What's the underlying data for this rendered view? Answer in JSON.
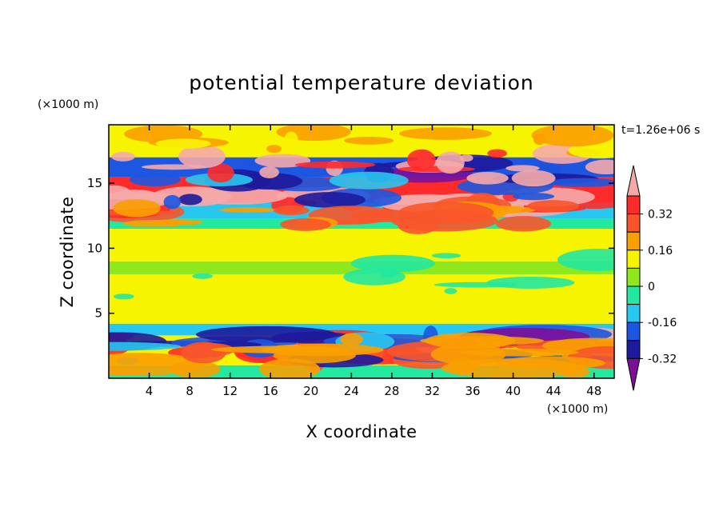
{
  "chart_data": {
    "type": "contour",
    "title": "potential temperature deviation",
    "xlabel": "X coordinate",
    "ylabel": "Z coordinate",
    "x_unit_label": "(×1000 m)",
    "y_unit_label": "(×1000 m)",
    "time_label": "t=1.26e+06 s",
    "xlim": [
      0,
      50
    ],
    "ylim": [
      0,
      19.5
    ],
    "x_ticks": [
      4,
      8,
      12,
      16,
      20,
      24,
      28,
      32,
      36,
      40,
      44,
      48
    ],
    "y_ticks": [
      5,
      10,
      15
    ],
    "colorbar": {
      "levels": [
        -0.4,
        -0.32,
        -0.24,
        -0.16,
        -0.08,
        0,
        0.08,
        0.16,
        0.24,
        0.32,
        0.4
      ],
      "labeled": [
        "0.32",
        "0.16",
        "0",
        "-0.16",
        "-0.32"
      ],
      "colors": [
        "#7b0f9a",
        "#1d1a9c",
        "#1d56e0",
        "#28c7f0",
        "#22e8a0",
        "#8fe81c",
        "#f7f400",
        "#f9a000",
        "#f8552a",
        "#ff2a2a",
        "#f5aaaa"
      ]
    },
    "layers": [
      {
        "z": [
          0,
          1.0
        ],
        "value": -0.1
      },
      {
        "z": [
          1.0,
          3.3
        ],
        "value": 0.05
      },
      {
        "z": [
          3.3,
          4.2
        ],
        "value": -0.2
      },
      {
        "z": [
          4.2,
          6.0
        ],
        "value": 0.05
      },
      {
        "z": [
          6.0,
          8.0
        ],
        "value": 0.02
      },
      {
        "z": [
          8.0,
          9.0
        ],
        "value": -0.05
      },
      {
        "z": [
          9.0,
          11.5
        ],
        "value": 0.02
      },
      {
        "z": [
          11.5,
          12.3
        ],
        "value": -0.1
      },
      {
        "z": [
          12.3,
          13.5
        ],
        "value": -0.2
      },
      {
        "z": [
          13.5,
          15.5
        ],
        "value": 0.3
      },
      {
        "z": [
          15.5,
          17.0
        ],
        "value": -0.3
      },
      {
        "z": [
          17.0,
          19.5
        ],
        "value": 0.02
      }
    ]
  }
}
